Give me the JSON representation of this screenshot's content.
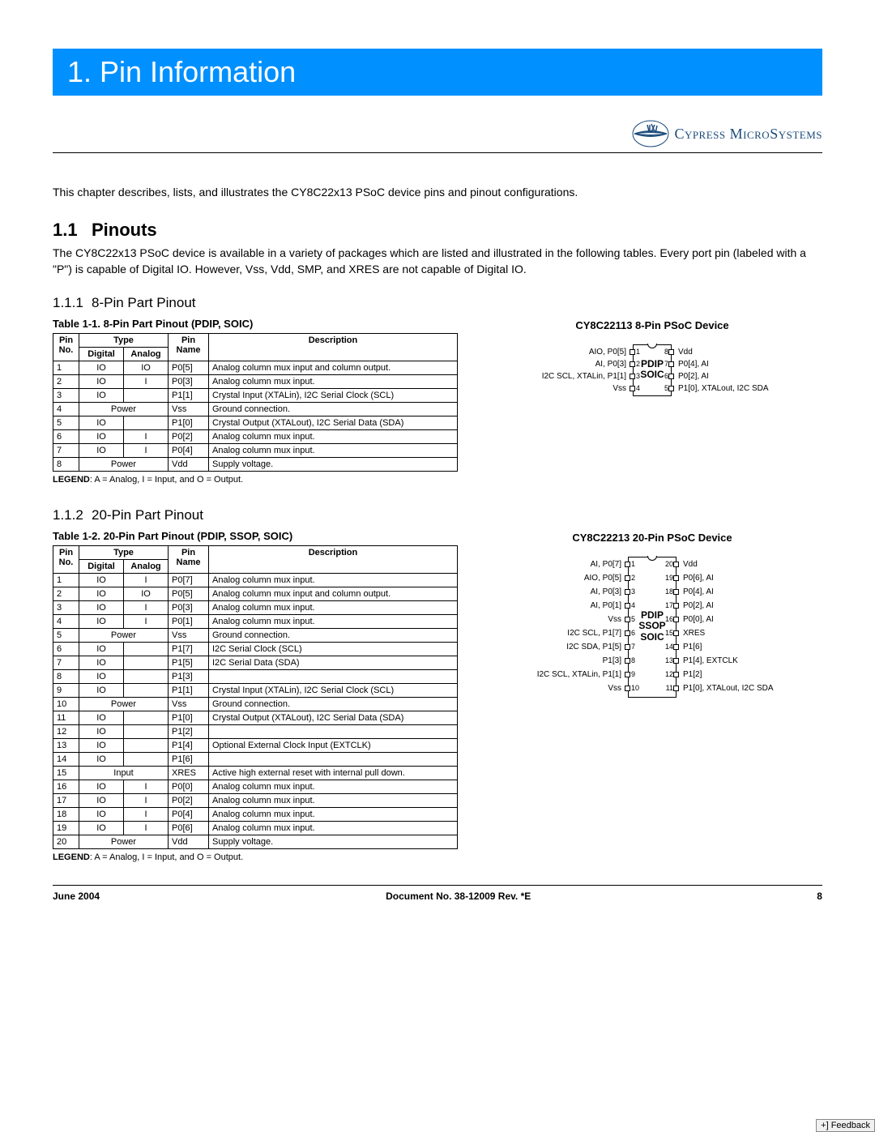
{
  "banner": "1.  Pin Information",
  "logo_text": "Cypress MicroSystems",
  "intro": "This chapter describes, lists, and illustrates the CY8C22x13 PSoC device pins and pinout configurations.",
  "sec11_num": "1.1",
  "sec11_title": "Pinouts",
  "sec11_text": "The CY8C22x13 PSoC device is available in a variety of packages which are listed and illustrated in the following tables. Every port pin (labeled with a \"P\") is capable of Digital IO. However, Vss, Vdd, SMP, and XRES are not capable of Digital IO.",
  "sec111_num": "1.1.1",
  "sec111_title": "8-Pin Part Pinout",
  "table1_caption": "Table 1-1. 8-Pin Part Pinout (PDIP, SOIC)",
  "device1_caption": "CY8C22113 8-Pin PSoC Device",
  "th_pin_no": "Pin No.",
  "th_type": "Type",
  "th_digital": "Digital",
  "th_analog": "Analog",
  "th_pin_name": "Pin Name",
  "th_desc": "Description",
  "table1_rows": [
    {
      "no": "1",
      "d": "IO",
      "a": "IO",
      "name": "P0[5]",
      "desc": "Analog column mux input and column output."
    },
    {
      "no": "2",
      "d": "IO",
      "a": "I",
      "name": "P0[3]",
      "desc": "Analog column mux input."
    },
    {
      "no": "3",
      "d": "IO",
      "a": "",
      "name": "P1[1]",
      "desc": "Crystal Input (XTALin), I2C Serial Clock (SCL)"
    },
    {
      "no": "4",
      "d": "Power",
      "a": "",
      "name": "Vss",
      "desc": "Ground connection.",
      "merge": true
    },
    {
      "no": "5",
      "d": "IO",
      "a": "",
      "name": "P1[0]",
      "desc": "Crystal Output (XTALout), I2C Serial Data (SDA)"
    },
    {
      "no": "6",
      "d": "IO",
      "a": "I",
      "name": "P0[2]",
      "desc": "Analog column mux input."
    },
    {
      "no": "7",
      "d": "IO",
      "a": "I",
      "name": "P0[4]",
      "desc": "Analog column mux input."
    },
    {
      "no": "8",
      "d": "Power",
      "a": "",
      "name": "Vdd",
      "desc": "Supply voltage.",
      "merge": true
    }
  ],
  "legend_text": "LEGEND",
  "legend_rest": ": A = Analog, I = Input, and O = Output.",
  "chip1_label1": "PDIP",
  "chip1_label2": "SOIC",
  "chip1_left": [
    {
      "n": "1",
      "t": "AIO, P0[5]"
    },
    {
      "n": "2",
      "t": "AI, P0[3]"
    },
    {
      "n": "3",
      "t": "I2C SCL, XTALin, P1[1]"
    },
    {
      "n": "4",
      "t": "Vss"
    }
  ],
  "chip1_right": [
    {
      "n": "8",
      "t": "Vdd"
    },
    {
      "n": "7",
      "t": "P0[4], AI"
    },
    {
      "n": "6",
      "t": "P0[2], AI"
    },
    {
      "n": "5",
      "t": "P1[0], XTALout, I2C SDA"
    }
  ],
  "sec112_num": "1.1.2",
  "sec112_title": "20-Pin Part Pinout",
  "table2_caption": "Table 1-2. 20-Pin Part Pinout (PDIP, SSOP, SOIC)",
  "device2_caption": "CY8C22213 20-Pin PSoC Device",
  "table2_rows": [
    {
      "no": "1",
      "d": "IO",
      "a": "I",
      "name": "P0[7]",
      "desc": "Analog column mux input."
    },
    {
      "no": "2",
      "d": "IO",
      "a": "IO",
      "name": "P0[5]",
      "desc": "Analog column mux input and column output."
    },
    {
      "no": "3",
      "d": "IO",
      "a": "I",
      "name": "P0[3]",
      "desc": "Analog column mux input."
    },
    {
      "no": "4",
      "d": "IO",
      "a": "I",
      "name": "P0[1]",
      "desc": "Analog column mux input."
    },
    {
      "no": "5",
      "d": "Power",
      "a": "",
      "name": "Vss",
      "desc": "Ground connection.",
      "merge": true
    },
    {
      "no": "6",
      "d": "IO",
      "a": "",
      "name": "P1[7]",
      "desc": "I2C Serial Clock (SCL)"
    },
    {
      "no": "7",
      "d": "IO",
      "a": "",
      "name": "P1[5]",
      "desc": "I2C Serial Data (SDA)"
    },
    {
      "no": "8",
      "d": "IO",
      "a": "",
      "name": "P1[3]",
      "desc": ""
    },
    {
      "no": "9",
      "d": "IO",
      "a": "",
      "name": "P1[1]",
      "desc": "Crystal Input (XTALin), I2C Serial Clock (SCL)"
    },
    {
      "no": "10",
      "d": "Power",
      "a": "",
      "name": "Vss",
      "desc": "Ground connection.",
      "merge": true
    },
    {
      "no": "11",
      "d": "IO",
      "a": "",
      "name": "P1[0]",
      "desc": "Crystal Output (XTALout), I2C Serial Data (SDA)"
    },
    {
      "no": "12",
      "d": "IO",
      "a": "",
      "name": "P1[2]",
      "desc": ""
    },
    {
      "no": "13",
      "d": "IO",
      "a": "",
      "name": "P1[4]",
      "desc": "Optional External Clock Input (EXTCLK)"
    },
    {
      "no": "14",
      "d": "IO",
      "a": "",
      "name": "P1[6]",
      "desc": ""
    },
    {
      "no": "15",
      "d": "Input",
      "a": "",
      "name": "XRES",
      "desc": "Active high external reset with internal pull down.",
      "merge": true
    },
    {
      "no": "16",
      "d": "IO",
      "a": "I",
      "name": "P0[0]",
      "desc": "Analog column mux input."
    },
    {
      "no": "17",
      "d": "IO",
      "a": "I",
      "name": "P0[2]",
      "desc": "Analog column mux input."
    },
    {
      "no": "18",
      "d": "IO",
      "a": "I",
      "name": "P0[4]",
      "desc": "Analog column mux input."
    },
    {
      "no": "19",
      "d": "IO",
      "a": "I",
      "name": "P0[6]",
      "desc": "Analog column mux input."
    },
    {
      "no": "20",
      "d": "Power",
      "a": "",
      "name": "Vdd",
      "desc": "Supply voltage.",
      "merge": true
    }
  ],
  "chip2_label1": "PDIP",
  "chip2_label2": "SSOP",
  "chip2_label3": "SOIC",
  "chip2_left": [
    {
      "n": "1",
      "t": "AI, P0[7]"
    },
    {
      "n": "2",
      "t": "AIO, P0[5]"
    },
    {
      "n": "3",
      "t": "AI, P0[3]"
    },
    {
      "n": "4",
      "t": "AI, P0[1]"
    },
    {
      "n": "5",
      "t": "Vss"
    },
    {
      "n": "6",
      "t": "I2C SCL, P1[7]"
    },
    {
      "n": "7",
      "t": "I2C SDA, P1[5]"
    },
    {
      "n": "8",
      "t": "P1[3]"
    },
    {
      "n": "9",
      "t": "I2C SCL, XTALin, P1[1]"
    },
    {
      "n": "10",
      "t": "Vss"
    }
  ],
  "chip2_right": [
    {
      "n": "20",
      "t": "Vdd"
    },
    {
      "n": "19",
      "t": "P0[6], AI"
    },
    {
      "n": "18",
      "t": "P0[4], AI"
    },
    {
      "n": "17",
      "t": "P0[2], AI"
    },
    {
      "n": "16",
      "t": "P0[0], AI"
    },
    {
      "n": "15",
      "t": "XRES"
    },
    {
      "n": "14",
      "t": "P1[6]"
    },
    {
      "n": "13",
      "t": "P1[4], EXTCLK"
    },
    {
      "n": "12",
      "t": "P1[2]"
    },
    {
      "n": "11",
      "t": "P1[0], XTALout, I2C SDA"
    }
  ],
  "footer_date": "June 2004",
  "footer_doc": "Document No. 38-12009 Rev. *E",
  "footer_page": "8",
  "feedback": "+] Feedback"
}
